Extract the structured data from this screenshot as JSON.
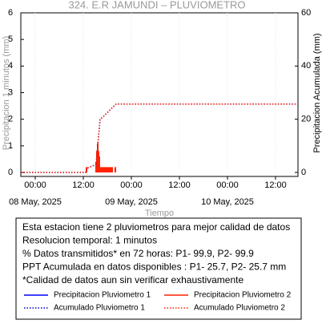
{
  "chart_data": {
    "type": "combo",
    "title": "324. E.R JAMUNDI – PLUVIOMETRO",
    "ylabel": "Precipitacion 1 minutos (mm)",
    "y2label": "Precipitacion Acumulada (mm)",
    "xlabel": "Tiempo",
    "xlim": [
      -3.6,
      65.6
    ],
    "xticks": [
      {
        "value": 0,
        "label": "00:00"
      },
      {
        "value": 12,
        "label": "12:00"
      },
      {
        "value": 24,
        "label": "00:00"
      },
      {
        "value": 36,
        "label": "12:00"
      },
      {
        "value": 48,
        "label": "00:00"
      },
      {
        "value": 60,
        "label": "12:00"
      }
    ],
    "xdates": [
      {
        "value": 0,
        "label": "08 May, 2025"
      },
      {
        "value": 24,
        "label": "09 May, 2025"
      },
      {
        "value": 48,
        "label": "10 May, 2025"
      }
    ],
    "ylim": [
      -0.15,
      6
    ],
    "yticks": [
      0,
      1,
      2,
      3,
      4,
      5,
      6
    ],
    "y2lim": [
      -1.5,
      60
    ],
    "y2ticks": [
      0,
      20,
      40,
      60
    ],
    "grid": true,
    "series": [
      {
        "name": "Precipitacion Pluviometro 1",
        "kind": "bar",
        "color": "#0000ff",
        "axis": "y",
        "x": [
          15.4,
          15.6
        ],
        "values": [
          0.8,
          0.7
        ]
      },
      {
        "name": "Precipitacion Pluviometro 2",
        "kind": "bar",
        "color": "#ff2200",
        "axis": "y",
        "x": [
          12.8,
          15.2,
          15.4,
          15.6,
          15.8,
          16.0,
          16.4,
          16.8,
          17.2,
          17.6,
          18.0,
          18.4,
          18.8,
          19.2,
          20.0
        ],
        "values": [
          0.2,
          0.4,
          0.8,
          1.1,
          0.8,
          0.6,
          0.2,
          0.2,
          0.2,
          0.2,
          0.2,
          0.2,
          0.2,
          0.2,
          0.2
        ]
      },
      {
        "name": "Acumulado Pluviometro 1",
        "kind": "line",
        "style": "dotted",
        "color": "#0000cc",
        "axis": "y2",
        "x": [
          -3.6,
          12.6,
          12.8,
          15.2,
          15.6,
          16.2,
          17.0,
          18.0,
          19.0,
          20.2,
          65.6
        ],
        "values": [
          0,
          0,
          1.5,
          3,
          10,
          20,
          21,
          22.5,
          24,
          25.7,
          25.7
        ]
      },
      {
        "name": "Acumulado Pluviometro 2",
        "kind": "line",
        "style": "dotted",
        "color": "#ff2200",
        "axis": "y2",
        "x": [
          -3.6,
          12.6,
          12.8,
          15.2,
          15.6,
          16.2,
          17.0,
          18.0,
          19.0,
          20.2,
          65.6
        ],
        "values": [
          0,
          0,
          1.5,
          3,
          10,
          20,
          21,
          22.5,
          24,
          25.7,
          25.7
        ]
      }
    ],
    "notes": [
      "Esta estacion tiene 2 pluviometros para mejor calidad de datos",
      "Resolucion temporal: 1 minutos",
      "% Datos transmitidos* en 72 horas: P1- 99.9, P2- 99.9",
      "PPT Acumulada en datos disponibles : P1- 25.7, P2- 25.7 mm",
      "*Calidad de datos aun sin verificar exhaustivamente"
    ]
  }
}
